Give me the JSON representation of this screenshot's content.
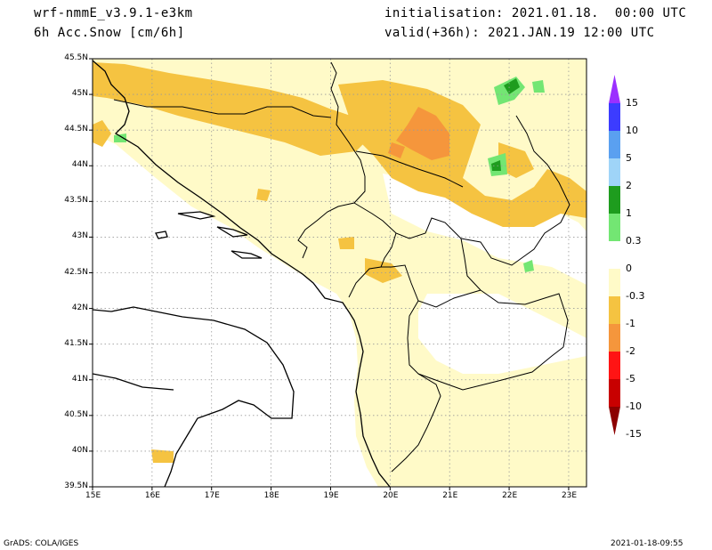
{
  "header": {
    "model": "wrf-nmmE_v3.9.1-e3km",
    "field": "6h Acc.Snow [cm/6h]",
    "init": "initialisation: 2021.01.18.  00:00 UTC",
    "valid": "valid(+36h): 2021.JAN.19 12:00 UTC"
  },
  "map": {
    "lat_labels": [
      "45.5N",
      "45N",
      "44.5N",
      "44N",
      "43.5N",
      "43N",
      "42.5N",
      "42N",
      "41.5N",
      "41N",
      "40.5N",
      "40N",
      "39.5N"
    ],
    "lon_labels": [
      "15E",
      "16E",
      "17E",
      "18E",
      "19E",
      "20E",
      "21E",
      "22E",
      "23E"
    ],
    "lat_range": [
      39.5,
      45.5
    ],
    "lon_range": [
      15,
      23.3
    ],
    "grid": "dotted"
  },
  "colorbar": {
    "labels": [
      "15",
      "10",
      "5",
      "2",
      "1",
      "0.3",
      "0",
      "-0.3",
      "-1",
      "-2",
      "-5",
      "-10",
      "-15"
    ],
    "colors": [
      "#9b30ff",
      "#3c3cff",
      "#5aa0f0",
      "#9fd4f8",
      "#1e9c1e",
      "#73e673",
      "#ffffff",
      "#fffac8",
      "#f5c341",
      "#f5963c",
      "#ff1414",
      "#c80000",
      "#8c0000"
    ]
  },
  "footer": {
    "left": "GrADS: COLA/IGES",
    "right": "2021-01-18-09:55"
  }
}
